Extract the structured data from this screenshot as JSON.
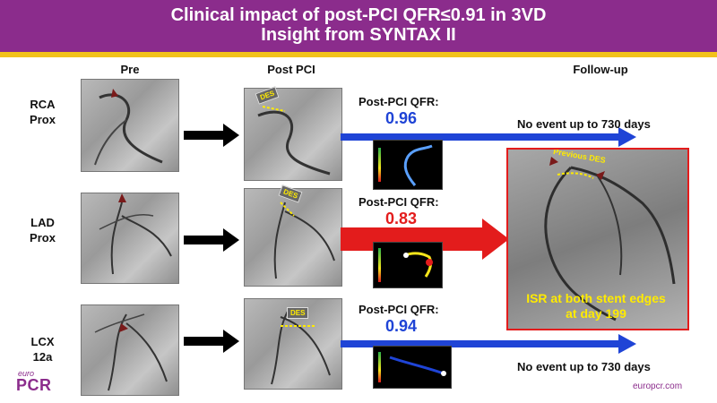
{
  "header": {
    "title_line1": "Clinical impact of post-PCI QFR≤0.91 in 3VD",
    "title_line2": "Insight from SYNTAX II"
  },
  "columns": {
    "pre": "Pre",
    "post": "Post PCI",
    "followup": "Follow-up"
  },
  "rows": [
    {
      "label1": "RCA",
      "label2": "Prox",
      "qfr_label": "Post-PCI QFR:",
      "qfr_value": "0.96",
      "qfr_color": "#1f44d6",
      "event": "No event up to 730 days"
    },
    {
      "label1": "LAD",
      "label2": "Prox",
      "qfr_label": "Post-PCI QFR:",
      "qfr_value": "0.83",
      "qfr_color": "#e31c1c",
      "event": ""
    },
    {
      "label1": "LCX",
      "label2": "12a",
      "qfr_label": "Post-PCI QFR:",
      "qfr_value": "0.94",
      "qfr_color": "#1f44d6",
      "event": "No event up to 730 days"
    }
  ],
  "des_tag": "DES",
  "followup": {
    "previous_des": "Previous DES",
    "isr_line1": "ISR at both stent edges",
    "isr_line2": "at day 199"
  },
  "footer": {
    "logo_small": "euro",
    "logo_big": "PCR",
    "url": "europcr.com"
  },
  "colors": {
    "purple": "#8b2c8c",
    "yellow": "#f2c21b",
    "blue": "#1f44d6",
    "red": "#e31c1c"
  }
}
